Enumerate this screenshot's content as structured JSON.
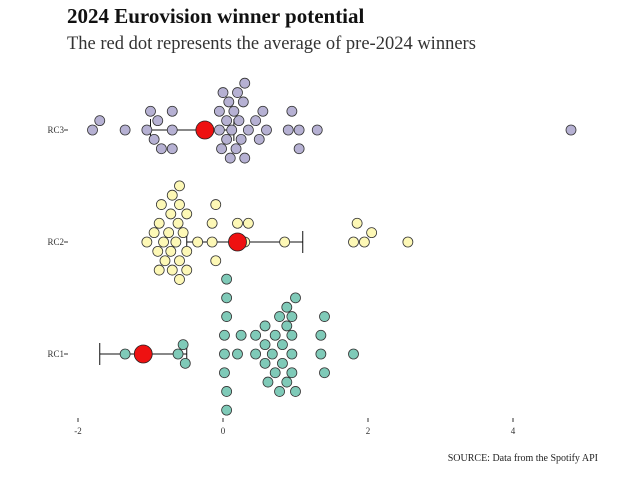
{
  "title": "2024 Eurovision winner potential",
  "subtitle": "The red dot represents the average of pre-2024 winners",
  "caption": "SOURCE: Data from the Spotify API",
  "colors": {
    "RC1": "#7fcab8",
    "RC2": "#fdf8b6",
    "RC3": "#b6b1d3",
    "average": "#ee1111",
    "stroke": "#333333",
    "errorbar": "#111111"
  },
  "chart_data": {
    "type": "scatter",
    "subtype": "beeswarm",
    "categories": [
      "RC1",
      "RC2",
      "RC3"
    ],
    "xlim": [
      -2.1,
      5.1
    ],
    "x_ticks": [
      -2,
      0,
      2,
      4
    ],
    "x_tick_labels": [
      "-2",
      "0",
      "2",
      "4"
    ],
    "grid": false,
    "series": [
      {
        "name": "RC1",
        "values": [
          -1.35,
          -0.62,
          -0.52,
          -0.55,
          0.05,
          0.05,
          0.05,
          0.02,
          0.02,
          0.02,
          0.05,
          0.05,
          0.25,
          0.2,
          0.45,
          0.45,
          0.58,
          0.58,
          0.58,
          0.62,
          0.72,
          0.68,
          0.72,
          0.78,
          0.78,
          0.82,
          0.82,
          0.88,
          0.88,
          0.88,
          0.95,
          0.95,
          1.0,
          1.0,
          0.95,
          0.95,
          1.35,
          1.35,
          1.4,
          1.4,
          1.8
        ],
        "average": -1.1,
        "error_low": -1.7,
        "error_high": -0.5
      },
      {
        "name": "RC2",
        "values": [
          -1.05,
          -0.95,
          -0.9,
          -0.85,
          -0.88,
          -0.88,
          -0.82,
          -0.75,
          -0.72,
          -0.7,
          -0.72,
          -0.8,
          -0.6,
          -0.65,
          -0.6,
          -0.6,
          -0.6,
          -0.62,
          -0.7,
          -0.55,
          -0.5,
          -0.5,
          -0.5,
          -0.35,
          -0.15,
          -0.15,
          -0.1,
          -0.1,
          0.15,
          0.2,
          0.3,
          0.35,
          0.85,
          1.8,
          1.85,
          1.95,
          2.05,
          2.55
        ],
        "average": 0.2,
        "error_low": -0.5,
        "error_high": 1.1
      },
      {
        "name": "RC3",
        "values": [
          -1.8,
          -1.7,
          -1.35,
          -1.05,
          -1.0,
          -0.95,
          -0.9,
          -0.85,
          -0.7,
          -0.7,
          -0.7,
          -0.05,
          -0.05,
          -0.02,
          0.0,
          0.05,
          0.05,
          0.08,
          0.1,
          0.12,
          0.15,
          0.18,
          0.2,
          0.22,
          0.25,
          0.28,
          0.3,
          0.3,
          0.35,
          0.45,
          0.5,
          0.55,
          0.6,
          0.9,
          0.95,
          1.05,
          1.05,
          1.3,
          4.8
        ],
        "average": -0.25,
        "error_low": -1.0,
        "error_high": 0.15
      }
    ]
  }
}
